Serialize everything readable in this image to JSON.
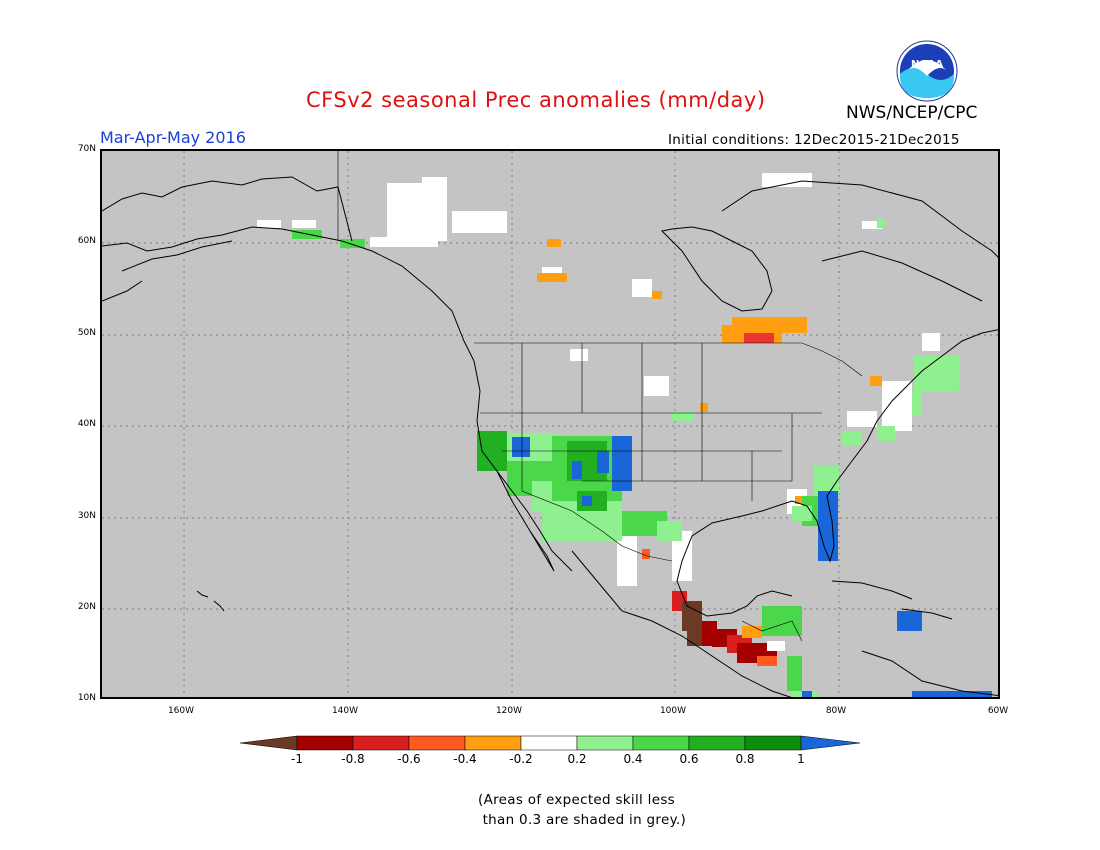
{
  "header": {
    "title": "CFSv2 seasonal Prec anomalies (mm/day)",
    "season": "Mar-Apr-May 2016",
    "initial_conditions": "Initial conditions: 12Dec2015-21Dec2015",
    "org": "NWS/NCEP/CPC",
    "logo_text": "NOAA"
  },
  "axes": {
    "lat_labels": [
      "70N",
      "60N",
      "50N",
      "40N",
      "30N",
      "20N",
      "10N"
    ],
    "lon_labels": [
      "160W",
      "140W",
      "120W",
      "100W",
      "80W",
      "60W"
    ]
  },
  "colorbar": {
    "tick_labels": [
      "-1",
      "-0.8",
      "-0.6",
      "-0.4",
      "-0.2",
      "0.2",
      "0.4",
      "0.6",
      "0.8",
      "1"
    ],
    "colors": [
      "#6b3a26",
      "#a40000",
      "#d81e1e",
      "#ff5a20",
      "#ff9e10",
      "#ffffff",
      "#8ef08e",
      "#4ad84a",
      "#22b022",
      "#0e8e0e",
      "#1a66d8"
    ]
  },
  "note": "(Areas of expected skill less\n than 0.3 are shaded in grey.)",
  "colors": {
    "grey_background": "#c4c4c4",
    "title_red": "#e01010",
    "season_blue": "#1a40d8"
  }
}
